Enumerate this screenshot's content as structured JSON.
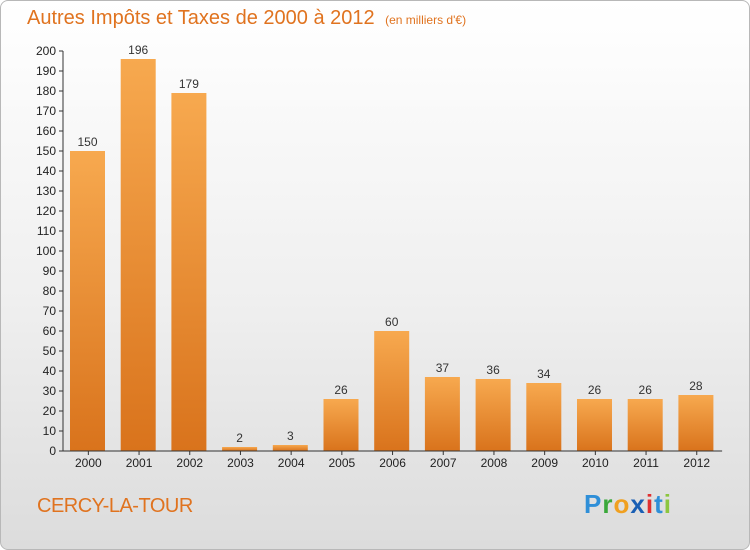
{
  "chart_data": {
    "type": "bar",
    "title": "Autres Impôts et Taxes de 2000 à 2012",
    "subtitle": "(en milliers d'€)",
    "categories": [
      "2000",
      "2001",
      "2002",
      "2003",
      "2004",
      "2005",
      "2006",
      "2007",
      "2008",
      "2009",
      "2010",
      "2011",
      "2012"
    ],
    "values": [
      150,
      196,
      179,
      2,
      3,
      26,
      60,
      37,
      36,
      34,
      26,
      26,
      28
    ],
    "ylim": [
      0,
      200
    ],
    "ytick_step": 10,
    "grid": false,
    "colors": {
      "bar_light": "#f7a94f",
      "bar_dark": "#d9731c",
      "text": "#e0731f",
      "axis": "#333333"
    }
  },
  "commune": "CERCY-LA-TOUR",
  "logo": {
    "text": "Proxiti",
    "letters": [
      "P",
      "r",
      "o",
      "x",
      "i",
      "t",
      "i"
    ],
    "colors": [
      "#2f8fd8",
      "#3aa83a",
      "#f0a020",
      "#1a5fb4",
      "#e03030",
      "#2f8fd8",
      "#8cc63f"
    ]
  }
}
